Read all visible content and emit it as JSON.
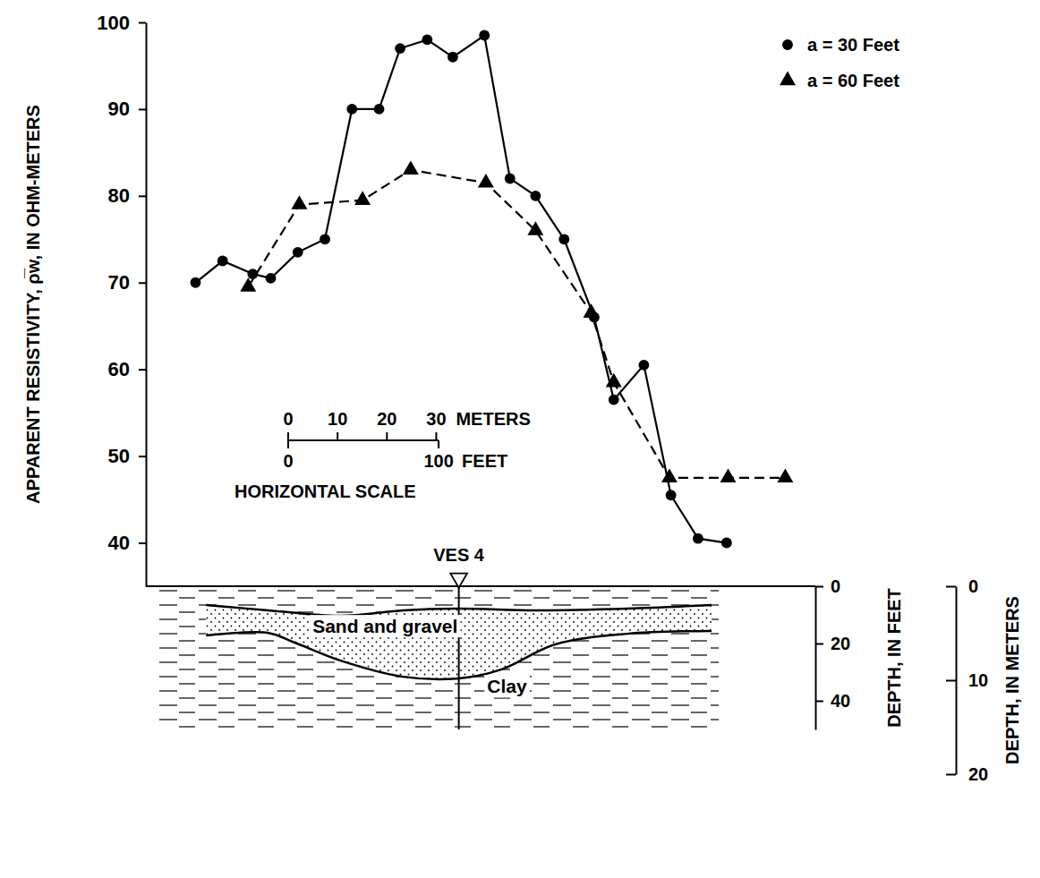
{
  "chart_data": {
    "type": "line",
    "y_label": "APPARENT RESISTIVITY, ρ̅w, IN OHM-METERS",
    "xlim": [
      0,
      445
    ],
    "ylim": [
      35,
      100
    ],
    "yticks": [
      40,
      50,
      60,
      70,
      80,
      90,
      100
    ],
    "tick_labels": "y",
    "legend": "upper right",
    "series": [
      {
        "name": "a = 30 Feet",
        "color": "#000000",
        "marker": "circle",
        "line_style": "solid",
        "x": [
          33,
          51,
          71,
          83,
          101,
          119,
          137,
          155,
          169,
          187,
          204,
          225,
          242,
          259,
          278,
          298,
          311,
          331,
          349,
          367,
          386
        ],
        "values": [
          70,
          72.5,
          71,
          70.5,
          73.5,
          75,
          90,
          90,
          97,
          98,
          96,
          98.5,
          82,
          80,
          75,
          66,
          56.5,
          60.5,
          45.5,
          40.5,
          40
        ]
      },
      {
        "name": "a = 60 Feet",
        "color": "#000000",
        "marker": "triangle",
        "line_style": "dashed",
        "x": [
          68,
          102,
          144,
          176,
          226,
          259,
          296,
          311,
          348,
          387,
          425
        ],
        "values": [
          69.5,
          79,
          79.5,
          83,
          81.5,
          76,
          66.5,
          58.5,
          47.5,
          47.5,
          47.5
        ]
      }
    ],
    "ves": {
      "label": "VES 4",
      "x": 208
    },
    "scale_bar": {
      "meter_ticks": [
        0,
        10,
        20,
        30
      ],
      "meter_unit": "METERS",
      "feet_ticks": [
        0,
        100
      ],
      "feet_unit": "FEET",
      "title": "HORIZONTAL SCALE"
    },
    "cross_section": {
      "top": {
        "x": [
          40,
          81.5,
          129,
          171,
          208,
          260,
          320,
          376
        ],
        "depth": [
          6.6,
          8.4,
          10.3,
          8.4,
          7.8,
          8.4,
          7.8,
          6.6
        ]
      },
      "bottom": {
        "x": [
          40,
          81.5,
          99,
          129,
          171,
          208,
          236,
          272,
          320,
          376
        ],
        "depth": [
          17.2,
          16.3,
          19.7,
          25.9,
          31.6,
          32.2,
          29.1,
          20.3,
          16.6,
          15.6
        ]
      },
      "labels": [
        "Sand and gravel",
        "Clay"
      ]
    },
    "depth_axes": [
      {
        "title": "DEPTH, IN FEET",
        "lim": [
          0,
          50
        ],
        "ticks": [
          0,
          20,
          40
        ]
      },
      {
        "title": "DEPTH, IN METERS",
        "lim": [
          0,
          20
        ],
        "ticks": [
          0,
          10,
          20
        ]
      }
    ]
  }
}
